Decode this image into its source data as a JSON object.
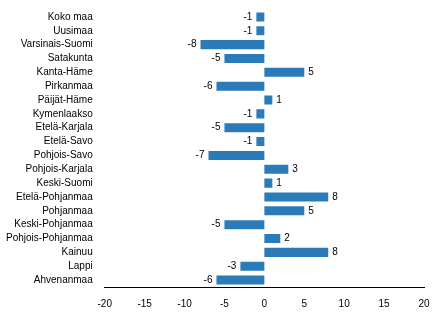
{
  "chart_data": {
    "type": "bar",
    "orientation": "horizontal",
    "categories": [
      "Koko maa",
      "Uusimaa",
      "Varsinais-Suomi",
      "Satakunta",
      "Kanta-Häme",
      "Pirkanmaa",
      "Päijät-Häme",
      "Kymenlaakso",
      "Etelä-Karjala",
      "Etelä-Savo",
      "Pohjois-Savo",
      "Pohjois-Karjala",
      "Keski-Suomi",
      "Etelä-Pohjanmaa",
      "Pohjanmaa",
      "Keski-Pohjanmaa",
      "Pohjois-Pohjanmaa",
      "Kainuu",
      "Lappi",
      "Ahvenanmaa"
    ],
    "values": [
      -1,
      -1,
      -8,
      -5,
      5,
      -6,
      1,
      -1,
      -5,
      -1,
      -7,
      3,
      1,
      8,
      5,
      -5,
      2,
      8,
      -3,
      -6
    ],
    "color": "#2b7bb9",
    "xlim": [
      -20,
      20
    ],
    "xticks": [
      -20,
      -15,
      -10,
      -5,
      0,
      5,
      10,
      15,
      20
    ],
    "grid": false,
    "data_labels": true
  }
}
